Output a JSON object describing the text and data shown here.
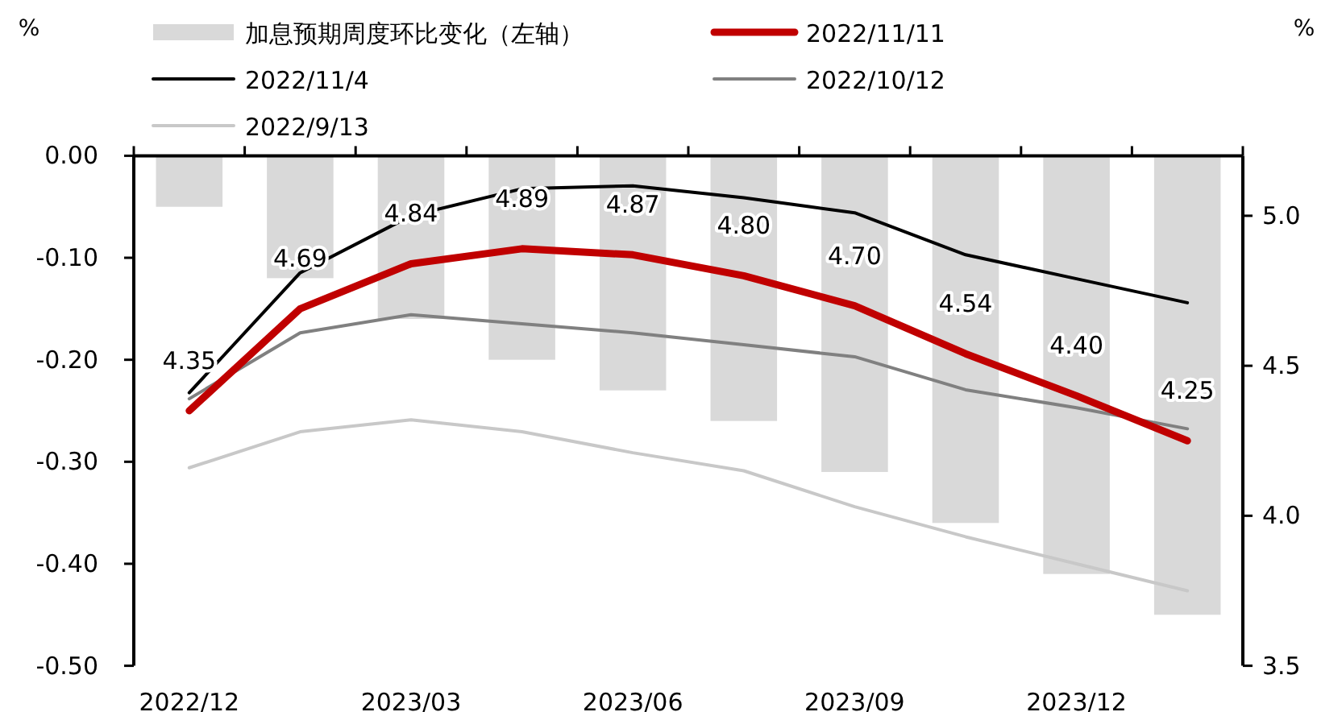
{
  "chart_data": {
    "type": "bar",
    "ylabel": "%",
    "y2label": "%",
    "legend": "top",
    "categories": [
      "2022/12",
      null,
      "2023/03",
      null,
      "2023/06",
      null,
      "2023/09",
      null,
      "2023/12",
      null
    ],
    "ylim": [
      -0.5,
      0
    ],
    "yticks": [
      {
        "value": 0,
        "label": "0.00"
      },
      {
        "value": -0.1,
        "label": "-0.10"
      },
      {
        "value": -0.2,
        "label": "-0.20"
      },
      {
        "value": -0.3,
        "label": "-0.30"
      },
      {
        "value": -0.4,
        "label": "-0.40"
      },
      {
        "value": -0.5,
        "label": "-0.50"
      }
    ],
    "y2lim": [
      3.5,
      5.2
    ],
    "y2ticks": [
      {
        "value": 5,
        "label": "5.0"
      },
      {
        "value": 4.5,
        "label": "4.5"
      },
      {
        "value": 4,
        "label": "4.0"
      },
      {
        "value": 3.5,
        "label": "3.5"
      }
    ],
    "series": [
      {
        "name": "加息预期周度环比变化（左轴）",
        "color": "#d9d9d9",
        "values": [
          -0.05,
          -0.12,
          -0.16,
          -0.2,
          -0.23,
          -0.26,
          -0.31,
          -0.36,
          -0.41,
          -0.45
        ]
      },
      {
        "name": "2022/11/11",
        "type": "line",
        "axis": "y2",
        "color": "#c00000",
        "values": [
          4.35,
          4.69,
          4.84,
          4.89,
          4.87,
          4.8,
          4.7,
          4.54,
          4.4,
          4.25
        ],
        "value_labels": [
          "4.35",
          "4.69",
          "4.84",
          "4.89",
          "4.87",
          "4.80",
          "4.70",
          "4.54",
          "4.40",
          "4.25"
        ]
      },
      {
        "name": "2022/11/4",
        "type": "line",
        "axis": "y2",
        "color": "#000000",
        "values": [
          4.41,
          4.81,
          5.0,
          5.09,
          5.1,
          5.06,
          5.01,
          4.87,
          4.79,
          4.71
        ]
      },
      {
        "name": "2022/10/12",
        "type": "line",
        "axis": "y2",
        "color": "#808080",
        "values": [
          4.39,
          4.61,
          4.67,
          4.64,
          4.61,
          4.57,
          4.53,
          4.42,
          4.36,
          4.29
        ]
      },
      {
        "name": "2022/9/13",
        "type": "line",
        "axis": "y2",
        "color": "#c8c8c8",
        "values": [
          4.16,
          4.28,
          4.32,
          4.28,
          4.21,
          4.15,
          4.03,
          3.93,
          3.84,
          3.75
        ]
      }
    ]
  }
}
